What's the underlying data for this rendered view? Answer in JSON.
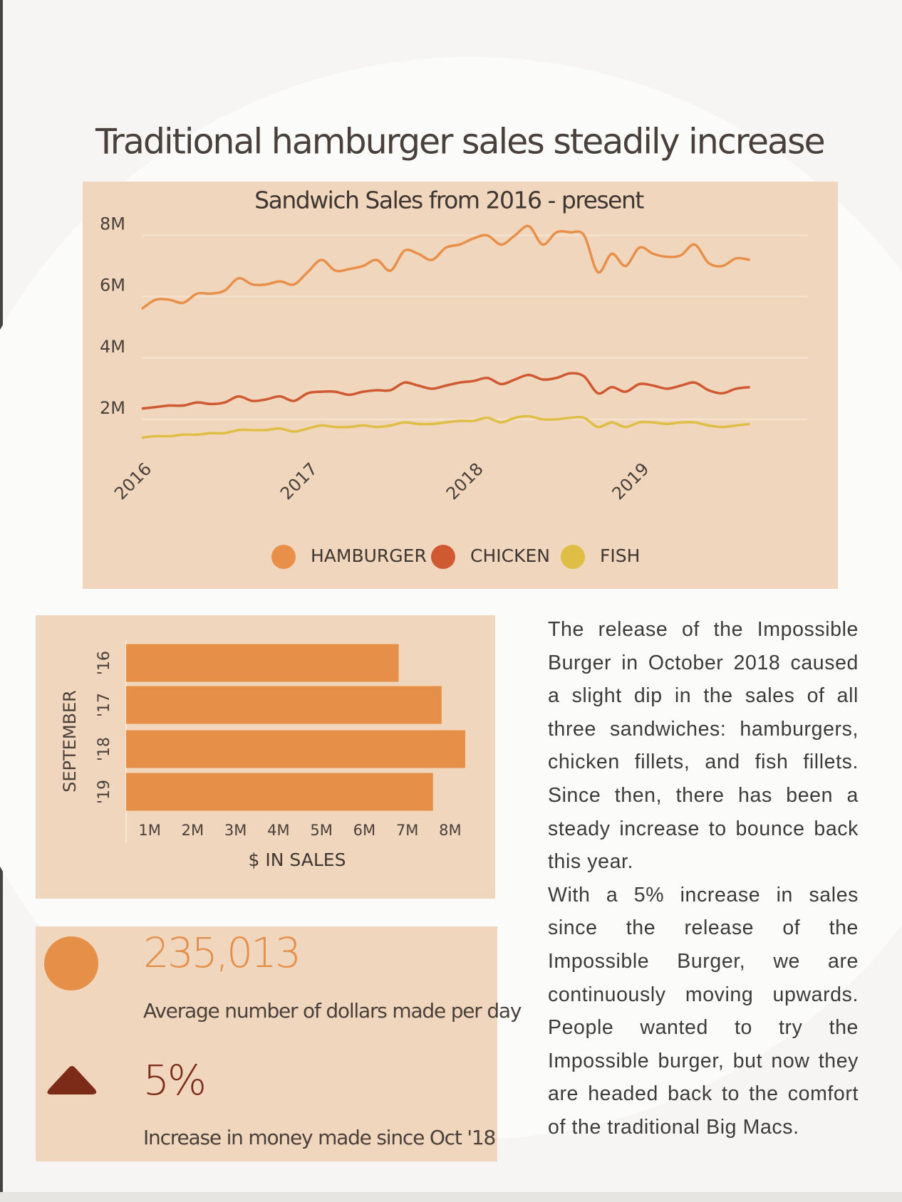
{
  "header": {
    "title": "Traditional hamburger sales steadily increase"
  },
  "chart_data": [
    {
      "type": "line",
      "title": "Sandwich Sales from 2016 - present",
      "categories": [
        "2016",
        null,
        null,
        null,
        null,
        null,
        null,
        null,
        null,
        null,
        null,
        null,
        "2017",
        null,
        null,
        null,
        null,
        null,
        null,
        null,
        null,
        null,
        null,
        null,
        "2018",
        null,
        null,
        null,
        null,
        null,
        null,
        null,
        null,
        null,
        null,
        null,
        "2019",
        null,
        null,
        null,
        null,
        null,
        null,
        null,
        null
      ],
      "series": [
        {
          "name": "HAMBURGER",
          "color": "#e8904a",
          "values": [
            5600000,
            5900000,
            5900000,
            5800000,
            6100000,
            6100000,
            6200000,
            6600000,
            6400000,
            6400000,
            6500000,
            6400000,
            6800000,
            7200000,
            6850000,
            6900000,
            7000000,
            7200000,
            6850000,
            7500000,
            7400000,
            7200000,
            7600000,
            7700000,
            7900000,
            8000000,
            7700000,
            8000000,
            8300000,
            7700000,
            8100000,
            8100000,
            8000000,
            6800000,
            7400000,
            7000000,
            7600000,
            7400000,
            7300000,
            7350000,
            7700000,
            7100000,
            7000000,
            7250000,
            7200000
          ]
        },
        {
          "name": "CHICKEN",
          "color": "#cf5a32",
          "values": [
            2350000,
            2400000,
            2450000,
            2450000,
            2550000,
            2500000,
            2550000,
            2750000,
            2600000,
            2650000,
            2750000,
            2600000,
            2850000,
            2900000,
            2900000,
            2800000,
            2900000,
            2950000,
            2950000,
            3200000,
            3100000,
            3000000,
            3100000,
            3200000,
            3250000,
            3350000,
            3150000,
            3300000,
            3450000,
            3300000,
            3350000,
            3500000,
            3400000,
            2850000,
            3050000,
            2900000,
            3150000,
            3100000,
            3000000,
            3100000,
            3200000,
            2950000,
            2850000,
            3000000,
            3050000
          ]
        },
        {
          "name": "FISH",
          "color": "#dfbe45",
          "values": [
            1400000,
            1450000,
            1450000,
            1500000,
            1500000,
            1550000,
            1550000,
            1650000,
            1650000,
            1650000,
            1700000,
            1600000,
            1700000,
            1800000,
            1750000,
            1750000,
            1800000,
            1750000,
            1800000,
            1900000,
            1850000,
            1850000,
            1900000,
            1950000,
            1950000,
            2050000,
            1900000,
            2050000,
            2100000,
            2000000,
            2000000,
            2050000,
            2050000,
            1750000,
            1900000,
            1750000,
            1900000,
            1900000,
            1850000,
            1900000,
            1900000,
            1800000,
            1750000,
            1800000,
            1850000
          ]
        }
      ],
      "ylim": [
        0,
        8500000
      ],
      "yticks": [
        {
          "value": 2000000,
          "label": "2M"
        },
        {
          "value": 4000000,
          "label": "4M"
        },
        {
          "value": 6000000,
          "label": "6M"
        },
        {
          "value": 8000000,
          "label": "8M"
        }
      ],
      "grid": true,
      "legend": "bottom"
    },
    {
      "type": "barh",
      "categories": [
        "'16",
        "'17",
        "'18",
        "'19"
      ],
      "values": [
        6800000,
        7800000,
        8350000,
        7600000
      ],
      "color": "#e68f48",
      "ylabel": "SEPTEMBER",
      "xlabel": "$ IN SALES",
      "xlim": [
        500000,
        8500000
      ],
      "xticks": [
        {
          "value": 1000000,
          "label": "1M"
        },
        {
          "value": 2000000,
          "label": "2M"
        },
        {
          "value": 3000000,
          "label": "3M"
        },
        {
          "value": 4000000,
          "label": "4M"
        },
        {
          "value": 5000000,
          "label": "5M"
        },
        {
          "value": 6000000,
          "label": "6M"
        },
        {
          "value": 7000000,
          "label": "7M"
        },
        {
          "value": 8000000,
          "label": "8M"
        }
      ]
    }
  ],
  "stats": [
    {
      "value": "235,013",
      "caption": "Average number of dollars made per day"
    },
    {
      "value": "5%",
      "caption": "Increase in money made since Oct '18"
    }
  ],
  "text": {
    "paragraphs": [
      "The release of the Impossible Burger in October 2018 caused a slight dip in the sales of all three sandwiches: hamburgers, chicken fillets, and fish fillets. Since then, there has been a steady increase to bounce back this year.",
      "With a 5% increase in sales since the release of the Impossible Burger, we are continuously moving upwards. People wanted to try the Impossible burger, but now they are headed back to the comfort of the traditional Big Macs."
    ]
  }
}
